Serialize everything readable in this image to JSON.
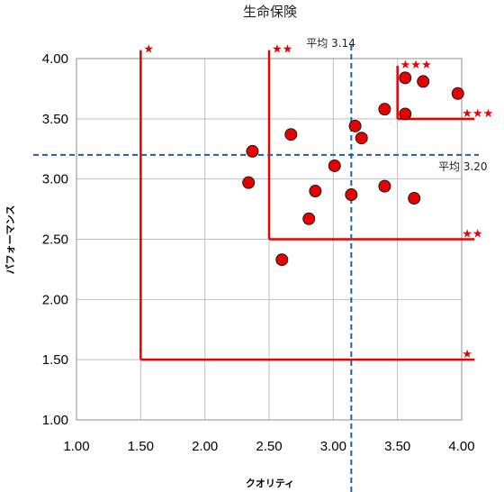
{
  "chart_data": {
    "type": "scatter",
    "title": "生命保険",
    "xlabel": "クオリティ",
    "ylabel": "パフォーマンス",
    "xlim": [
      1.0,
      4.0
    ],
    "ylim": [
      1.0,
      4.0
    ],
    "x_ticks": [
      "1.00",
      "1.50",
      "2.00",
      "2.50",
      "3.00",
      "3.50",
      "4.00"
    ],
    "y_ticks": [
      "1.00",
      "1.50",
      "2.00",
      "2.50",
      "3.00",
      "3.50",
      "4.00"
    ],
    "grid": true,
    "points": [
      {
        "x": 2.34,
        "y": 2.97
      },
      {
        "x": 2.37,
        "y": 3.23
      },
      {
        "x": 2.6,
        "y": 2.33
      },
      {
        "x": 2.67,
        "y": 3.37
      },
      {
        "x": 2.81,
        "y": 2.67
      },
      {
        "x": 2.86,
        "y": 2.9
      },
      {
        "x": 3.01,
        "y": 3.11
      },
      {
        "x": 3.14,
        "y": 2.87
      },
      {
        "x": 3.17,
        "y": 3.44
      },
      {
        "x": 3.22,
        "y": 3.34
      },
      {
        "x": 3.4,
        "y": 2.94
      },
      {
        "x": 3.4,
        "y": 3.58
      },
      {
        "x": 3.56,
        "y": 3.84
      },
      {
        "x": 3.56,
        "y": 3.54
      },
      {
        "x": 3.63,
        "y": 2.84
      },
      {
        "x": 3.7,
        "y": 3.81
      },
      {
        "x": 3.97,
        "y": 3.71
      }
    ],
    "mean_lines": [
      {
        "axis": "x",
        "value": 3.14,
        "label": "平均 3.14"
      },
      {
        "axis": "y",
        "value": 3.2,
        "label": "平均 3.20"
      }
    ],
    "rank_zones": [
      {
        "x": 1.5,
        "y": 1.5,
        "label": "★"
      },
      {
        "x": 2.5,
        "y": 2.5,
        "label": "★★"
      },
      {
        "x": 3.5,
        "y": 3.5,
        "label": "★★★"
      }
    ],
    "colors": {
      "points": "#e60000",
      "zones": "#e60000",
      "mean_lines": "#1f5fa8",
      "grid": "#bfbfbf"
    }
  }
}
